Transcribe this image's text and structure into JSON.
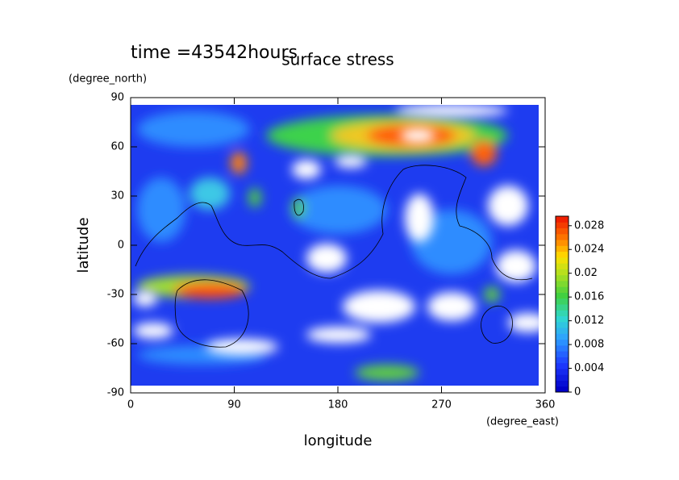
{
  "chart_data": {
    "type": "contour",
    "title": "surface stress",
    "subtitle": "time =43542hours",
    "x_label": "longitude",
    "y_label": "latitude",
    "x_unit": "(degree_east)",
    "y_unit": "(degree_north)",
    "xlim": [
      0,
      360
    ],
    "ylim": [
      -90,
      90
    ],
    "xticks": [
      0,
      90,
      180,
      270,
      360
    ],
    "yticks": [
      -90,
      -60,
      -30,
      0,
      30,
      60,
      90
    ],
    "colorbar": {
      "lim": [
        0,
        0.0296
      ],
      "ticks": [
        0,
        0.004,
        0.008,
        0.012,
        0.016,
        0.02,
        0.024,
        0.028
      ]
    }
  }
}
